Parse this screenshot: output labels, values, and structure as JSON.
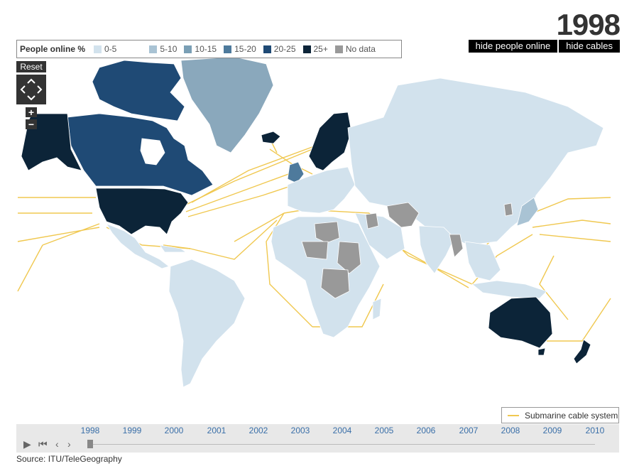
{
  "header": {
    "year": "1998"
  },
  "toggles": [
    {
      "label": "hide people online"
    },
    {
      "label": "hide cables"
    }
  ],
  "legend": {
    "title": "People online %",
    "items": [
      {
        "label": "0-5",
        "color": "#d2e2ed"
      },
      {
        "label": "5-10",
        "color": "#a9c3d4"
      },
      {
        "label": "10-15",
        "color": "#7a9fb5"
      },
      {
        "label": "15-20",
        "color": "#4e7a9c"
      },
      {
        "label": "20-25",
        "color": "#1f4a75"
      },
      {
        "label": "25+",
        "color": "#0c2438"
      },
      {
        "label": "No data",
        "color": "#999999"
      }
    ]
  },
  "controls": {
    "reset_label": "Reset",
    "zoom_in": "+",
    "zoom_out": "−"
  },
  "cable_legend": {
    "label": "Submarine cable system",
    "color": "#f0c850"
  },
  "timeline": {
    "years": [
      "1998",
      "1999",
      "2000",
      "2001",
      "2002",
      "2003",
      "2004",
      "2005",
      "2006",
      "2007",
      "2008",
      "2009",
      "2010"
    ],
    "selected": "1998",
    "play_icon": "play-icon",
    "rewind_icon": "rewind-icon",
    "prev_icon": "prev-icon",
    "next_icon": "next-icon"
  },
  "source": "Source: ITU/TeleGeography",
  "map": {
    "ocean_color": "#ffffff",
    "land_default": "#d2e2ed",
    "country_border": "#ffffff",
    "cable_color": "#f0c850"
  }
}
